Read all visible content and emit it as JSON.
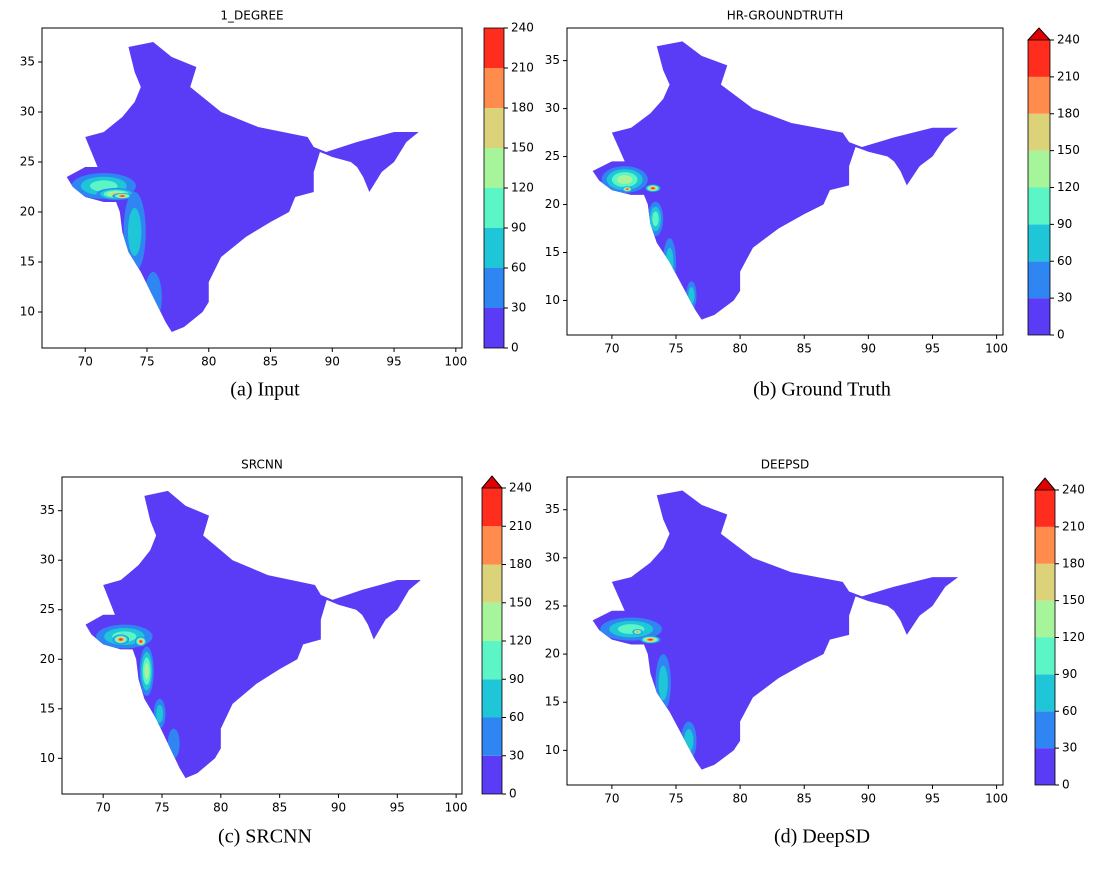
{
  "chart_data": [
    {
      "type": "contour",
      "title": "1_DEGREE",
      "caption": "(a)  Input",
      "xlim": [
        66.5,
        100.5
      ],
      "ylim": [
        6.4,
        38.4
      ],
      "xticks": [
        70,
        75,
        80,
        85,
        90,
        95,
        100
      ],
      "yticks": [
        10,
        15,
        20,
        25,
        30,
        35
      ],
      "colorbar": {
        "ticks": [
          0,
          30,
          60,
          90,
          120,
          150,
          180,
          210,
          240
        ],
        "colors": [
          "#5b3cf6",
          "#2f86f2",
          "#1ec6d8",
          "#5cf5c6",
          "#a6f59a",
          "#dcd27a",
          "#ff8c4c",
          "#ff2d1e"
        ],
        "extend_max": false,
        "extend_color": "#e00000"
      }
    },
    {
      "type": "contour",
      "title": "HR-GROUNDTRUTH",
      "caption": "(b)  Ground Truth",
      "xlim": [
        66.5,
        100.5
      ],
      "ylim": [
        6.4,
        38.4
      ],
      "xticks": [
        70,
        75,
        80,
        85,
        90,
        95,
        100
      ],
      "yticks": [
        10,
        15,
        20,
        25,
        30,
        35
      ],
      "colorbar": {
        "ticks": [
          0,
          30,
          60,
          90,
          120,
          150,
          180,
          210,
          240
        ],
        "colors": [
          "#5b3cf6",
          "#2f86f2",
          "#1ec6d8",
          "#5cf5c6",
          "#a6f59a",
          "#dcd27a",
          "#ff8c4c",
          "#ff2d1e"
        ],
        "extend_max": true,
        "extend_color": "#e00000"
      }
    },
    {
      "type": "contour",
      "title": "SRCNN",
      "caption": "(c)  SRCNN",
      "xlim": [
        66.5,
        100.5
      ],
      "ylim": [
        6.4,
        38.4
      ],
      "xticks": [
        70,
        75,
        80,
        85,
        90,
        95,
        100
      ],
      "yticks": [
        10,
        15,
        20,
        25,
        30,
        35
      ],
      "colorbar": {
        "ticks": [
          0,
          30,
          60,
          90,
          120,
          150,
          180,
          210,
          240
        ],
        "colors": [
          "#5b3cf6",
          "#2f86f2",
          "#1ec6d8",
          "#5cf5c6",
          "#a6f59a",
          "#dcd27a",
          "#ff8c4c",
          "#ff2d1e"
        ],
        "extend_max": true,
        "extend_color": "#e00000"
      }
    },
    {
      "type": "contour",
      "title": "DEEPSD",
      "caption": "(d)  DeepSD",
      "xlim": [
        66.5,
        100.5
      ],
      "ylim": [
        6.4,
        38.4
      ],
      "xticks": [
        70,
        75,
        80,
        85,
        90,
        95,
        100
      ],
      "yticks": [
        10,
        15,
        20,
        25,
        30,
        35
      ],
      "colorbar": {
        "ticks": [
          0,
          30,
          60,
          90,
          120,
          150,
          180,
          210,
          240
        ],
        "colors": [
          "#5b3cf6",
          "#2f86f2",
          "#1ec6d8",
          "#5cf5c6",
          "#a6f59a",
          "#dcd27a",
          "#ff8c4c",
          "#ff2d1e"
        ],
        "extend_max": true,
        "extend_color": "#e00000"
      }
    }
  ]
}
